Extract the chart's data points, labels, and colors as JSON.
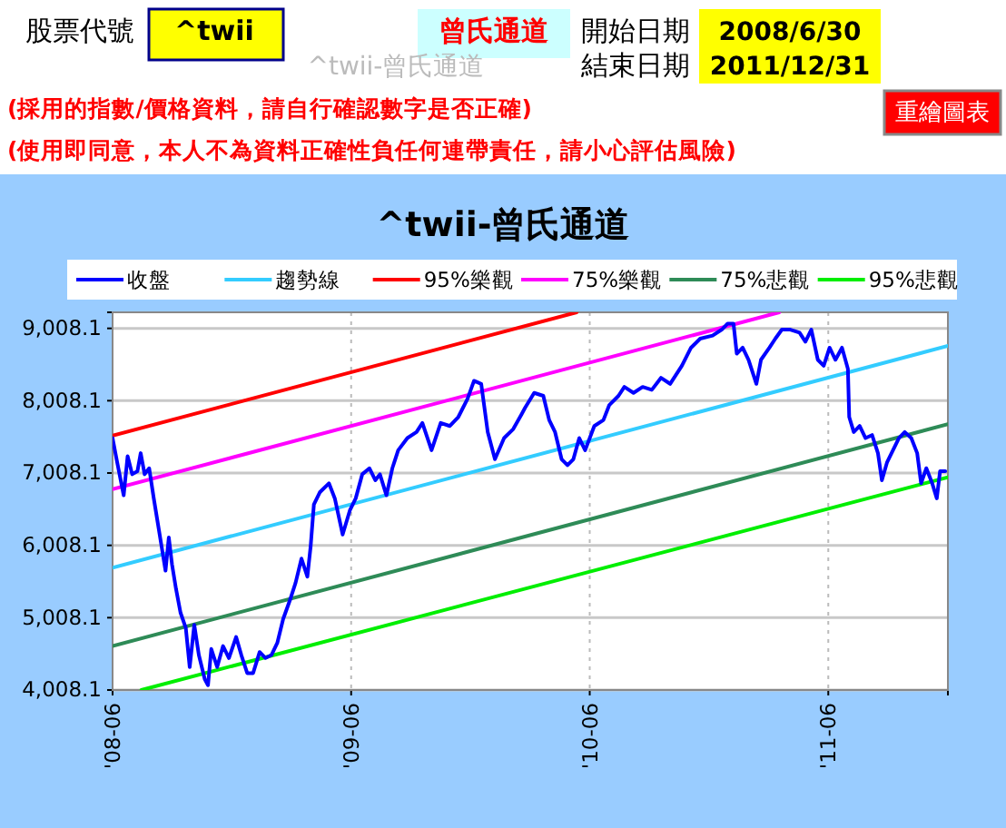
{
  "chart_data": {
    "type": "line",
    "title": "^twii-曾氏通道",
    "annotations": [
      "股票代號",
      "^twii",
      "曾氏通道",
      "開始日期",
      "2008/6/30",
      "結束日期",
      "2011/12/31",
      "^twii-曾氏通道",
      "(採用的指數/價格資料，請自行確認數字是否正確)",
      "(使用即同意，本人不為資料正確性負任何連帶責任，請小心評估風險)",
      "重繪圖表"
    ],
    "xlim": [
      "2008-06-01",
      "2011-12-01"
    ],
    "xticks": [
      {
        "value": "2008-06-01",
        "label": "'08-06"
      },
      {
        "value": "2009-06-01",
        "label": "'09-06"
      },
      {
        "value": "2010-06-01",
        "label": "'10-06"
      },
      {
        "value": "2011-06-01",
        "label": "'11-06"
      }
    ],
    "ylim": [
      4008.1,
      9230
    ],
    "yticks": [
      {
        "value": 4008.1,
        "label": "4,008.1"
      },
      {
        "value": 5008.1,
        "label": "5,008.1"
      },
      {
        "value": 6008.1,
        "label": "6,008.1"
      },
      {
        "value": 7008.1,
        "label": "7,008.1"
      },
      {
        "value": 8008.1,
        "label": "8,008.1"
      },
      {
        "value": 9008.1,
        "label": "9,008.1"
      }
    ],
    "grid": true,
    "legend": "top",
    "line_style": "solid",
    "marker": "none",
    "series": [
      {
        "name": "收盤",
        "color": "#0000ff",
        "x": [
          "2008-06-01",
          "2008-06-08",
          "2008-06-18",
          "2008-06-24",
          "2008-07-01",
          "2008-07-09",
          "2008-07-14",
          "2008-07-20",
          "2008-07-27",
          "2008-08-03",
          "2008-08-09",
          "2008-08-15",
          "2008-08-21",
          "2008-08-26",
          "2008-08-31",
          "2008-09-06",
          "2008-09-13",
          "2008-09-21",
          "2008-09-27",
          "2008-10-04",
          "2008-10-11",
          "2008-10-20",
          "2008-10-25",
          "2008-10-30",
          "2008-11-08",
          "2008-11-17",
          "2008-11-26",
          "2008-12-07",
          "2008-12-15",
          "2008-12-24",
          "2009-01-02",
          "2009-01-12",
          "2009-01-21",
          "2009-01-30",
          "2009-02-08",
          "2009-02-17",
          "2009-02-27",
          "2009-03-08",
          "2009-03-17",
          "2009-03-26",
          "2009-03-31",
          "2009-04-05",
          "2009-04-14",
          "2009-04-28",
          "2009-05-07",
          "2009-05-19",
          "2009-05-30",
          "2009-06-08",
          "2009-06-18",
          "2009-06-29",
          "2009-07-08",
          "2009-07-15",
          "2009-07-25",
          "2009-08-03",
          "2009-08-12",
          "2009-08-26",
          "2009-09-09",
          "2009-09-18",
          "2009-10-02",
          "2009-10-16",
          "2009-10-30",
          "2009-11-12",
          "2009-11-26",
          "2009-12-06",
          "2009-12-17",
          "2009-12-27",
          "2010-01-07",
          "2010-01-21",
          "2010-02-04",
          "2010-02-17",
          "2010-02-22",
          "2010-03-08",
          "2010-03-22",
          "2010-03-31",
          "2010-04-09",
          "2010-04-19",
          "2010-04-28",
          "2010-05-07",
          "2010-05-16",
          "2010-05-25",
          "2010-06-08",
          "2010-06-22",
          "2010-07-01",
          "2010-07-15",
          "2010-07-24",
          "2010-08-07",
          "2010-08-21",
          "2010-09-04",
          "2010-09-18",
          "2010-10-02",
          "2010-10-20",
          "2010-11-03",
          "2010-11-17",
          "2010-12-06",
          "2010-12-20",
          "2010-12-29",
          "2011-01-07",
          "2011-01-12",
          "2011-01-21",
          "2011-01-30",
          "2011-02-11",
          "2011-02-18",
          "2011-03-03",
          "2011-03-12",
          "2011-03-22",
          "2011-04-04",
          "2011-04-18",
          "2011-04-27",
          "2011-05-06",
          "2011-05-16",
          "2011-05-25",
          "2011-06-03",
          "2011-06-12",
          "2011-06-22",
          "2011-07-01",
          "2011-07-03",
          "2011-07-10",
          "2011-07-19",
          "2011-07-28",
          "2011-08-07",
          "2011-08-16",
          "2011-08-22",
          "2011-08-30",
          "2011-09-08",
          "2011-09-17",
          "2011-09-26",
          "2011-10-06",
          "2011-10-15",
          "2011-10-21",
          "2011-10-29",
          "2011-11-07",
          "2011-11-14",
          "2011-11-19",
          "2011-11-27"
        ],
        "values": [
          7491,
          7158,
          6700,
          7241,
          6991,
          7033,
          7283,
          6991,
          7074,
          6658,
          6325,
          5991,
          5658,
          6116,
          5741,
          5408,
          5075,
          4866,
          4325,
          4908,
          4491,
          4158,
          4075,
          4575,
          4325,
          4616,
          4450,
          4741,
          4491,
          4241,
          4241,
          4533,
          4450,
          4491,
          4658,
          4991,
          5241,
          5491,
          5825,
          5575,
          5991,
          6575,
          6741,
          6866,
          6658,
          6158,
          6491,
          6658,
          6991,
          7074,
          6908,
          6991,
          6700,
          7074,
          7324,
          7491,
          7574,
          7700,
          7324,
          7700,
          7658,
          7783,
          8033,
          8283,
          8241,
          7574,
          7199,
          7491,
          7616,
          7825,
          7908,
          8116,
          8075,
          7741,
          7574,
          7199,
          7116,
          7199,
          7491,
          7324,
          7658,
          7741,
          7949,
          8075,
          8199,
          8116,
          8199,
          8158,
          8324,
          8241,
          8491,
          8741,
          8866,
          8908,
          8991,
          9074,
          9074,
          8658,
          8741,
          8574,
          8241,
          8574,
          8741,
          8866,
          8991,
          8991,
          8949,
          8824,
          8991,
          8574,
          8491,
          8741,
          8574,
          8741,
          8449,
          7783,
          7574,
          7658,
          7491,
          7533,
          7283,
          6908,
          7158,
          7324,
          7491,
          7574,
          7491,
          7283,
          6866,
          7074,
          6866,
          6658,
          7033,
          7033
        ]
      },
      {
        "name": "趨勢線",
        "color": "#33ccff",
        "x": [
          "2008-06-01",
          "2011-12-01"
        ],
        "values": [
          5700,
          8766
        ]
      },
      {
        "name": "95%樂觀",
        "color": "#ff0000",
        "x": [
          "2008-06-01",
          "2010-05-12"
        ],
        "values": [
          7525,
          9230
        ]
      },
      {
        "name": "75%樂觀",
        "color": "#ff00ff",
        "x": [
          "2008-06-01",
          "2011-03-18"
        ],
        "values": [
          6783,
          9230
        ]
      },
      {
        "name": "75%悲觀",
        "color": "#2e8b57",
        "x": [
          "2008-06-01",
          "2011-12-01"
        ],
        "values": [
          4616,
          7683
        ]
      },
      {
        "name": "95%悲觀",
        "color": "#00ee00",
        "x": [
          "2008-07-15",
          "2011-12-01"
        ],
        "values": [
          4008.1,
          6950
        ]
      }
    ]
  }
}
